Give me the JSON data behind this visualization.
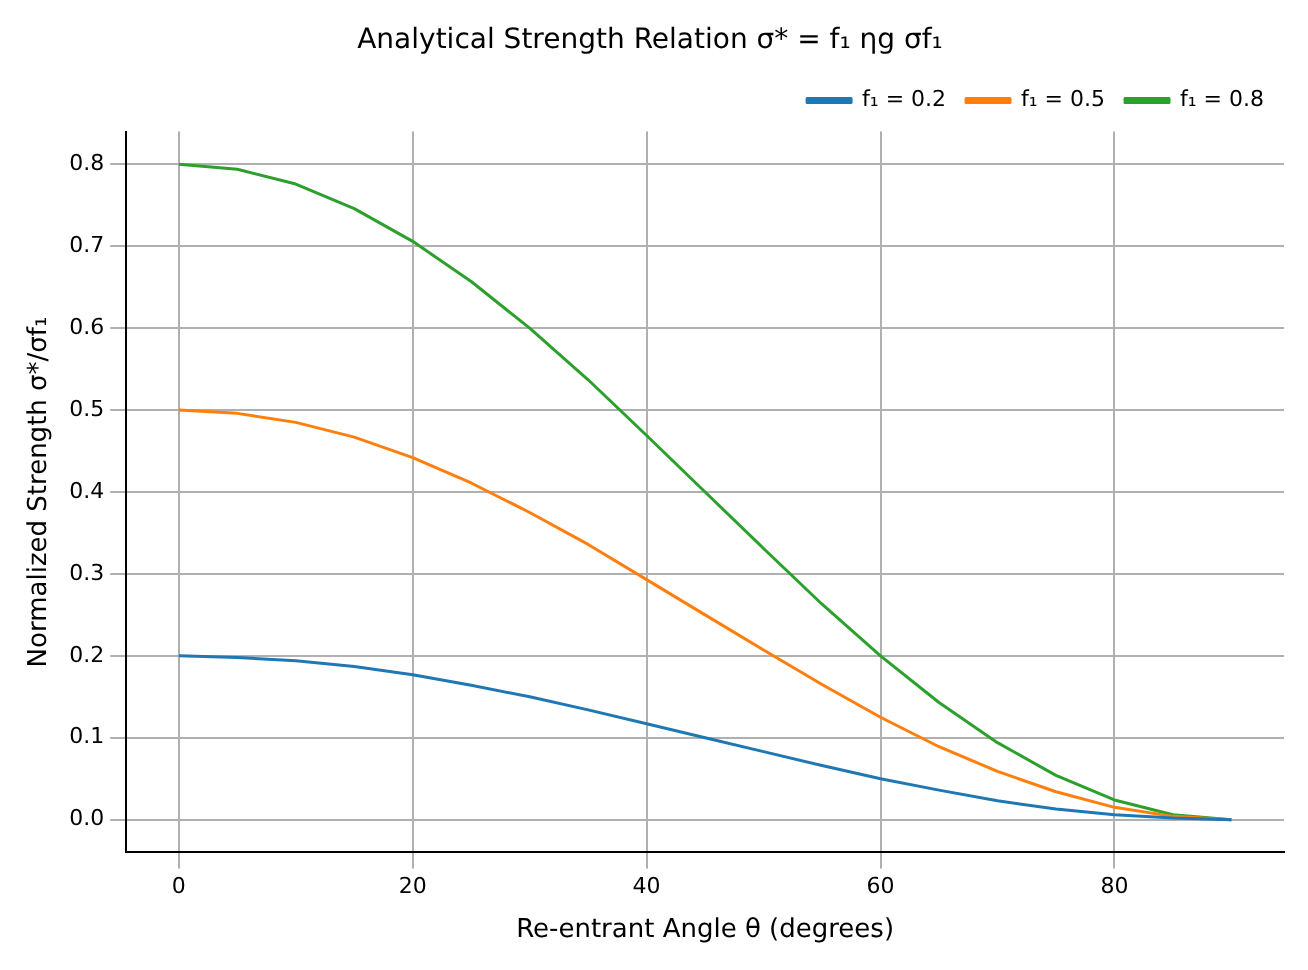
{
  "chart_data": {
    "type": "line",
    "title": "Analytical Strength Relation σ* = f₁ ηg σf₁",
    "xlabel": "Re-entrant Angle θ (degrees)",
    "ylabel": "Normalized Strength σ*/σf₁",
    "x": [
      0,
      5,
      10,
      15,
      20,
      25,
      30,
      35,
      40,
      45,
      50,
      55,
      60,
      65,
      70,
      75,
      80,
      85,
      90
    ],
    "series": [
      {
        "name": "f₁ = 0.2",
        "color": "#1f77b4",
        "values": [
          0.2,
          0.198,
          0.194,
          0.187,
          0.177,
          0.164,
          0.15,
          0.134,
          0.117,
          0.1,
          0.083,
          0.066,
          0.05,
          0.036,
          0.023,
          0.013,
          0.006,
          0.002,
          0
        ]
      },
      {
        "name": "f₁ = 0.5",
        "color": "#ff7f0e",
        "values": [
          0.5,
          0.496,
          0.485,
          0.467,
          0.442,
          0.411,
          0.375,
          0.336,
          0.293,
          0.25,
          0.207,
          0.165,
          0.125,
          0.089,
          0.059,
          0.034,
          0.015,
          0.004,
          0
        ]
      },
      {
        "name": "f₁ = 0.8",
        "color": "#2ca02c",
        "values": [
          0.8,
          0.794,
          0.776,
          0.746,
          0.706,
          0.657,
          0.6,
          0.537,
          0.469,
          0.4,
          0.331,
          0.263,
          0.2,
          0.143,
          0.094,
          0.054,
          0.024,
          0.006,
          0
        ]
      }
    ],
    "xlim": [
      -4.5,
      94.5
    ],
    "xticks": [
      0,
      20,
      40,
      60,
      80
    ],
    "ylim": [
      -0.04,
      0.84
    ],
    "yticks": [
      {
        "value": 0,
        "label": "0.0"
      },
      0.1,
      0.2,
      0.3,
      0.4,
      0.5,
      0.6,
      0.7,
      0.8
    ],
    "grid": true,
    "legend": "top right",
    "marker": "none",
    "line_style": "solid"
  }
}
